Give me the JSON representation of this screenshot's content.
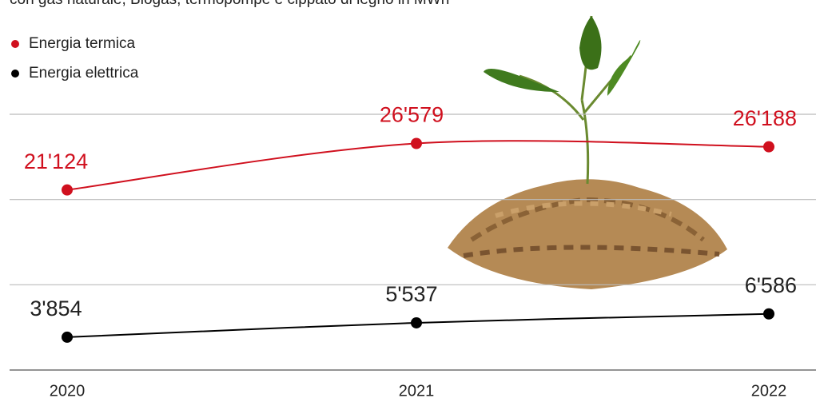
{
  "chart_data": {
    "type": "line",
    "subtitle": "con gas naturale, Biogas, termopompe e cippato di legno in MWh",
    "categories": [
      "2020",
      "2021",
      "2022"
    ],
    "series": [
      {
        "name": "Energia termica",
        "color": "#d0101e",
        "values": [
          21124,
          26579,
          26188
        ],
        "value_labels": [
          "21'124",
          "26'579",
          "26'188"
        ]
      },
      {
        "name": "Energia elettrica",
        "color": "#000000",
        "values": [
          3854,
          5537,
          6586
        ],
        "value_labels": [
          "3'854",
          "5'537",
          "6'586"
        ]
      }
    ],
    "ylim": [
      0,
      30000
    ],
    "yticks": [
      0,
      10000,
      20000,
      30000
    ],
    "grid": true
  }
}
